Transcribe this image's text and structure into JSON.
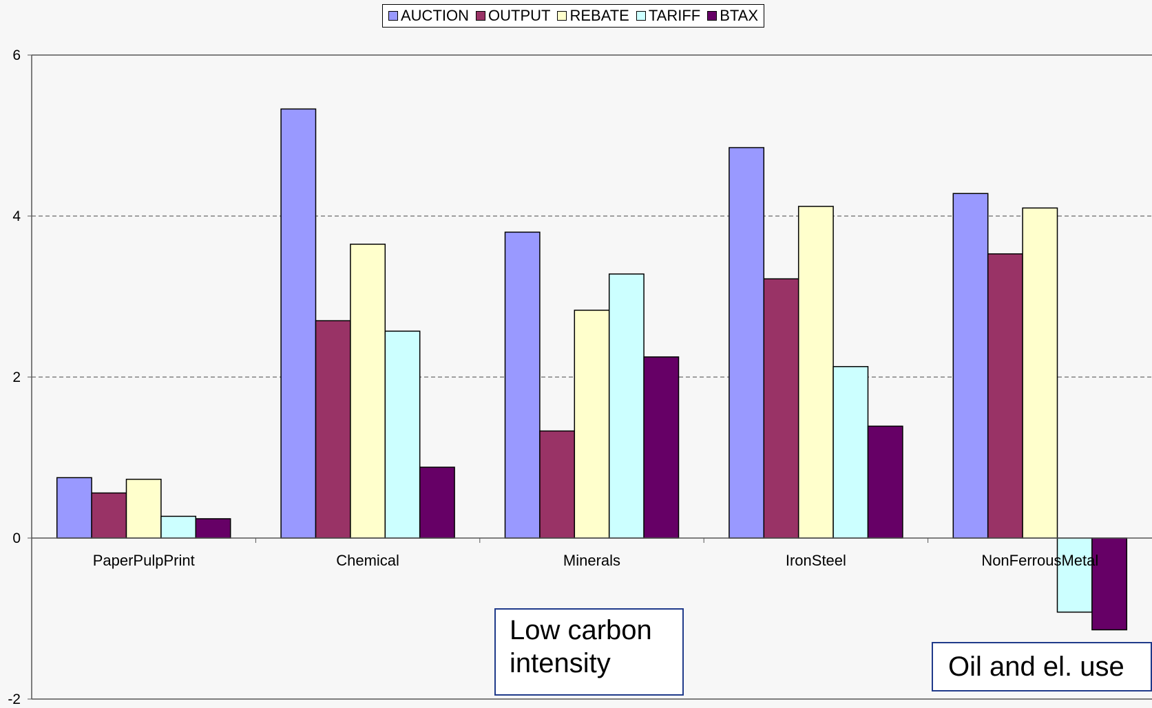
{
  "chart_data": {
    "type": "bar",
    "categories": [
      "PaperPulpPrint",
      "Chemical",
      "Minerals",
      "IronSteel",
      "NonFerrousMetal"
    ],
    "series": [
      {
        "name": "AUCTION",
        "color": "#9999ff",
        "values": [
          0.75,
          5.33,
          3.8,
          4.85,
          4.28
        ]
      },
      {
        "name": "OUTPUT",
        "color": "#993366",
        "values": [
          0.56,
          2.7,
          1.33,
          3.22,
          3.53
        ]
      },
      {
        "name": "REBATE",
        "color": "#ffffcc",
        "values": [
          0.73,
          3.65,
          2.83,
          4.12,
          4.1
        ]
      },
      {
        "name": "TARIFF",
        "color": "#ccffff",
        "values": [
          0.27,
          2.57,
          3.28,
          2.13,
          -0.92
        ]
      },
      {
        "name": "BTAX",
        "color": "#660066",
        "values": [
          0.24,
          0.88,
          2.25,
          1.39,
          -1.14
        ]
      }
    ],
    "ylim": [
      -2,
      6
    ],
    "yticks": [
      "-2",
      "0",
      "2",
      "4",
      "6"
    ],
    "grid": "horizontal dashed",
    "legend_position": "top-center",
    "annotations": [
      "Low carbon intensity",
      "Oil and el. use"
    ]
  },
  "annotations": {
    "low_line1": "Low carbon",
    "low_line2": "intensity",
    "oil": "Oil and el. use"
  }
}
